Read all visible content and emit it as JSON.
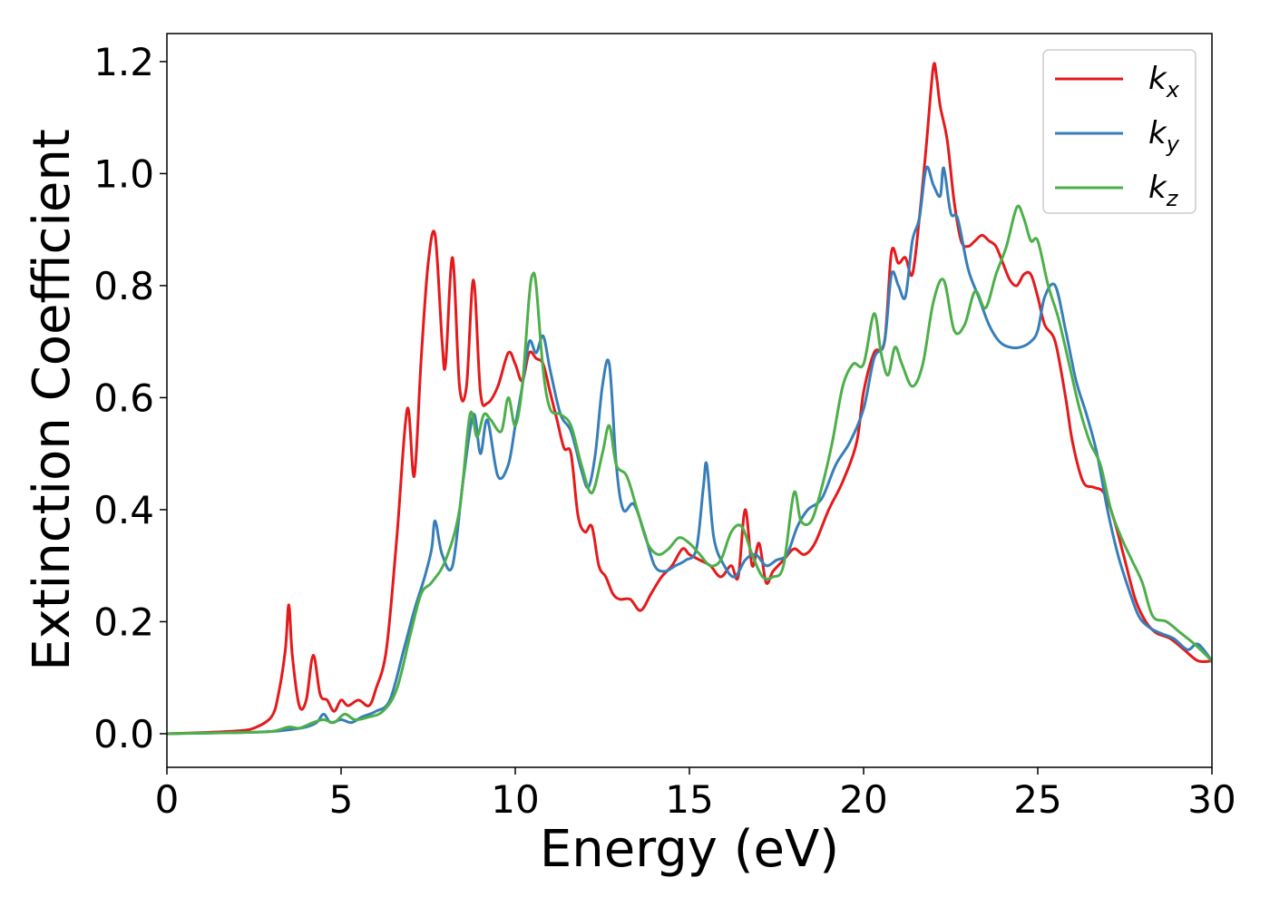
{
  "chart_data": {
    "type": "line",
    "xlabel": "Energy (eV)",
    "ylabel": "Extinction Coefficient",
    "xlim": [
      0,
      30
    ],
    "ylim": [
      -0.06,
      1.25
    ],
    "xticks": [
      0,
      5,
      10,
      15,
      20,
      25,
      30
    ],
    "xtick_labels": [
      "0",
      "5",
      "10",
      "15",
      "20",
      "25",
      "30"
    ],
    "yticks": [
      0.0,
      0.2,
      0.4,
      0.6,
      0.8,
      1.0,
      1.2
    ],
    "ytick_labels": [
      "0.0",
      "0.2",
      "0.4",
      "0.6",
      "0.8",
      "1.0",
      "1.2"
    ],
    "grid": false,
    "legend_position": "top-right",
    "series": [
      {
        "name": "kx",
        "label_main": "k",
        "label_sub": "x",
        "color": "#e41a1c",
        "x": [
          0,
          1,
          2,
          2.5,
          3,
          3.2,
          3.4,
          3.5,
          3.6,
          3.8,
          4.0,
          4.2,
          4.4,
          4.6,
          4.8,
          5.0,
          5.2,
          5.5,
          5.8,
          6.0,
          6.3,
          6.6,
          6.9,
          7.1,
          7.3,
          7.5,
          7.7,
          7.9,
          8.0,
          8.2,
          8.4,
          8.6,
          8.8,
          9.0,
          9.2,
          9.5,
          9.8,
          10.0,
          10.2,
          10.4,
          10.6,
          10.8,
          11.0,
          11.2,
          11.4,
          11.6,
          11.8,
          12.0,
          12.2,
          12.4,
          12.6,
          12.8,
          13.0,
          13.3,
          13.6,
          13.9,
          14.2,
          14.5,
          14.8,
          15.0,
          15.3,
          15.6,
          15.9,
          16.2,
          16.4,
          16.6,
          16.8,
          17.0,
          17.2,
          17.4,
          17.7,
          18.0,
          18.3,
          18.6,
          19.0,
          19.4,
          19.8,
          20.0,
          20.3,
          20.6,
          20.8,
          21.0,
          21.2,
          21.4,
          21.6,
          21.8,
          22.0,
          22.1,
          22.2,
          22.4,
          22.6,
          22.8,
          23.0,
          23.2,
          23.4,
          23.6,
          23.8,
          24.0,
          24.2,
          24.4,
          24.6,
          24.8,
          25.0,
          25.2,
          25.5,
          25.8,
          26.0,
          26.3,
          26.6,
          26.9,
          27.2,
          27.5,
          27.8,
          28.1,
          28.4,
          28.8,
          29.2,
          29.6,
          30
        ],
        "y": [
          0,
          0.002,
          0.005,
          0.01,
          0.03,
          0.07,
          0.15,
          0.23,
          0.14,
          0.05,
          0.06,
          0.14,
          0.07,
          0.06,
          0.04,
          0.06,
          0.05,
          0.06,
          0.05,
          0.08,
          0.15,
          0.35,
          0.58,
          0.46,
          0.67,
          0.84,
          0.89,
          0.7,
          0.66,
          0.85,
          0.62,
          0.62,
          0.81,
          0.61,
          0.59,
          0.62,
          0.68,
          0.66,
          0.63,
          0.68,
          0.67,
          0.66,
          0.61,
          0.56,
          0.51,
          0.5,
          0.39,
          0.36,
          0.37,
          0.3,
          0.28,
          0.25,
          0.24,
          0.24,
          0.22,
          0.25,
          0.28,
          0.3,
          0.33,
          0.32,
          0.31,
          0.3,
          0.28,
          0.3,
          0.28,
          0.4,
          0.3,
          0.34,
          0.27,
          0.29,
          0.31,
          0.33,
          0.32,
          0.34,
          0.4,
          0.45,
          0.52,
          0.61,
          0.68,
          0.7,
          0.86,
          0.84,
          0.85,
          0.82,
          0.92,
          1.05,
          1.19,
          1.17,
          1.12,
          1.06,
          0.95,
          0.88,
          0.87,
          0.88,
          0.89,
          0.88,
          0.87,
          0.84,
          0.81,
          0.8,
          0.82,
          0.82,
          0.78,
          0.73,
          0.7,
          0.6,
          0.52,
          0.45,
          0.44,
          0.43,
          0.38,
          0.31,
          0.24,
          0.2,
          0.18,
          0.17,
          0.15,
          0.13,
          0.13
        ]
      },
      {
        "name": "ky",
        "label_main": "k",
        "label_sub": "y",
        "color": "#377eb8",
        "x": [
          0,
          1,
          2,
          3,
          3.5,
          4,
          4.3,
          4.5,
          4.7,
          5.0,
          5.3,
          5.6,
          6.0,
          6.4,
          6.8,
          7.1,
          7.4,
          7.6,
          7.7,
          7.9,
          8.2,
          8.5,
          8.8,
          9.0,
          9.2,
          9.5,
          9.8,
          10.0,
          10.2,
          10.4,
          10.6,
          10.8,
          11.0,
          11.3,
          11.6,
          11.9,
          12.1,
          12.3,
          12.5,
          12.7,
          12.9,
          13.1,
          13.4,
          13.7,
          14.0,
          14.3,
          14.6,
          14.9,
          15.2,
          15.4,
          15.5,
          15.7,
          16.0,
          16.3,
          16.6,
          16.9,
          17.2,
          17.5,
          17.8,
          18.1,
          18.4,
          18.8,
          19.2,
          19.6,
          20.0,
          20.3,
          20.6,
          20.8,
          21.0,
          21.2,
          21.4,
          21.6,
          21.8,
          22.0,
          22.2,
          22.3,
          22.5,
          22.7,
          23.0,
          23.3,
          23.6,
          23.9,
          24.2,
          24.5,
          24.8,
          25.0,
          25.2,
          25.5,
          25.8,
          26.1,
          26.4,
          26.7,
          27.0,
          27.3,
          27.6,
          27.9,
          28.2,
          28.5,
          28.9,
          29.3,
          29.6,
          30
        ],
        "y": [
          0,
          0.001,
          0.002,
          0.004,
          0.007,
          0.012,
          0.02,
          0.035,
          0.02,
          0.025,
          0.02,
          0.03,
          0.04,
          0.06,
          0.15,
          0.22,
          0.28,
          0.33,
          0.38,
          0.32,
          0.3,
          0.45,
          0.57,
          0.5,
          0.56,
          0.46,
          0.48,
          0.55,
          0.62,
          0.7,
          0.68,
          0.71,
          0.65,
          0.57,
          0.54,
          0.47,
          0.44,
          0.5,
          0.62,
          0.66,
          0.48,
          0.4,
          0.41,
          0.36,
          0.3,
          0.29,
          0.3,
          0.31,
          0.33,
          0.44,
          0.48,
          0.35,
          0.3,
          0.28,
          0.31,
          0.32,
          0.3,
          0.31,
          0.32,
          0.37,
          0.4,
          0.42,
          0.48,
          0.52,
          0.58,
          0.67,
          0.7,
          0.82,
          0.8,
          0.78,
          0.88,
          0.92,
          1.01,
          0.98,
          0.96,
          1.01,
          0.93,
          0.92,
          0.83,
          0.78,
          0.73,
          0.7,
          0.69,
          0.69,
          0.7,
          0.72,
          0.78,
          0.8,
          0.72,
          0.63,
          0.57,
          0.5,
          0.4,
          0.32,
          0.26,
          0.21,
          0.19,
          0.18,
          0.17,
          0.15,
          0.16,
          0.13
        ]
      },
      {
        "name": "kz",
        "label_main": "k",
        "label_sub": "z",
        "color": "#4daf4a",
        "x": [
          0,
          1,
          2,
          3,
          3.5,
          3.8,
          4.2,
          4.5,
          4.8,
          5.1,
          5.4,
          5.8,
          6.2,
          6.6,
          7.0,
          7.3,
          7.6,
          8.0,
          8.4,
          8.7,
          8.9,
          9.1,
          9.3,
          9.6,
          9.8,
          10.0,
          10.2,
          10.4,
          10.5,
          10.6,
          10.8,
          11.0,
          11.3,
          11.6,
          11.9,
          12.2,
          12.5,
          12.7,
          12.9,
          13.2,
          13.5,
          13.8,
          14.1,
          14.4,
          14.7,
          15.0,
          15.3,
          15.6,
          15.9,
          16.2,
          16.5,
          16.8,
          17.1,
          17.4,
          17.7,
          18.0,
          18.2,
          18.5,
          18.8,
          19.1,
          19.4,
          19.7,
          20.0,
          20.3,
          20.5,
          20.7,
          20.9,
          21.1,
          21.4,
          21.7,
          22.0,
          22.3,
          22.6,
          22.9,
          23.2,
          23.5,
          23.8,
          24.1,
          24.4,
          24.6,
          24.8,
          25.0,
          25.3,
          25.6,
          25.9,
          26.2,
          26.5,
          26.8,
          27.1,
          27.4,
          27.7,
          28.0,
          28.3,
          28.7,
          29.1,
          29.5,
          30
        ],
        "y": [
          0,
          0.001,
          0.002,
          0.004,
          0.012,
          0.01,
          0.02,
          0.025,
          0.02,
          0.035,
          0.025,
          0.03,
          0.04,
          0.08,
          0.18,
          0.25,
          0.27,
          0.31,
          0.4,
          0.57,
          0.53,
          0.57,
          0.56,
          0.54,
          0.6,
          0.55,
          0.62,
          0.78,
          0.82,
          0.8,
          0.65,
          0.58,
          0.57,
          0.55,
          0.48,
          0.43,
          0.5,
          0.55,
          0.48,
          0.46,
          0.4,
          0.34,
          0.32,
          0.33,
          0.35,
          0.34,
          0.32,
          0.3,
          0.31,
          0.36,
          0.37,
          0.32,
          0.28,
          0.28,
          0.3,
          0.43,
          0.38,
          0.38,
          0.44,
          0.52,
          0.62,
          0.66,
          0.66,
          0.75,
          0.68,
          0.64,
          0.69,
          0.66,
          0.62,
          0.66,
          0.77,
          0.81,
          0.72,
          0.73,
          0.79,
          0.76,
          0.82,
          0.87,
          0.94,
          0.92,
          0.88,
          0.88,
          0.8,
          0.74,
          0.66,
          0.58,
          0.52,
          0.48,
          0.4,
          0.35,
          0.31,
          0.27,
          0.21,
          0.2,
          0.18,
          0.16,
          0.13
        ]
      }
    ]
  }
}
